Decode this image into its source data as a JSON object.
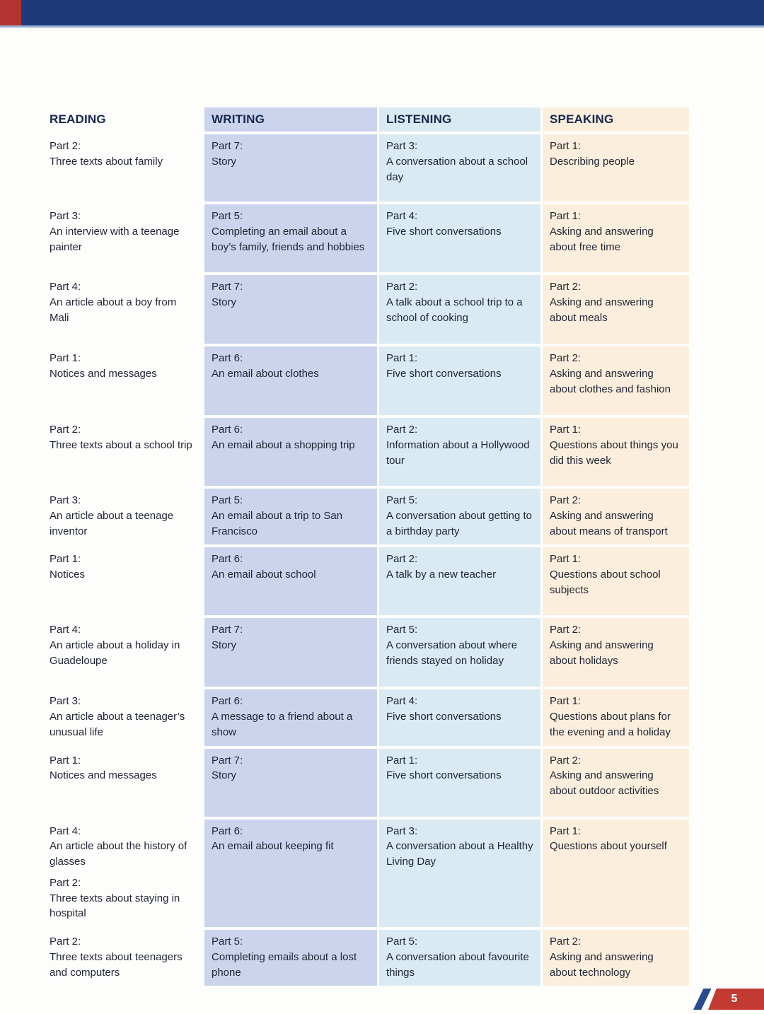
{
  "page": {
    "number": "5"
  },
  "colors": {
    "topbar_navy": "#203a79",
    "topbar_red": "#b23431",
    "writing_tint": "#cbd4ec",
    "listening_tint": "#d9eaf2",
    "speaking_tint": "#fbeedd",
    "badge_red": "#c23a32",
    "badge_blue": "#2b4a8b",
    "header_text": "#16284f"
  },
  "columns": [
    {
      "key": "reading",
      "title": "READING"
    },
    {
      "key": "writing",
      "title": "WRITING"
    },
    {
      "key": "listening",
      "title": "LISTENING"
    },
    {
      "key": "speaking",
      "title": "SPEAKING"
    }
  ],
  "rows": [
    {
      "reading": [
        {
          "part": "Part 2:",
          "desc": "Three texts about family"
        }
      ],
      "writing": [
        {
          "part": "Part 7:",
          "desc": "Story"
        }
      ],
      "listening": [
        {
          "part": "Part 3:",
          "desc": "A conversation about a school day"
        }
      ],
      "speaking": [
        {
          "part": "Part 1:",
          "desc": "Describing people"
        }
      ]
    },
    {
      "reading": [
        {
          "part": "Part 3:",
          "desc": "An interview with a teenage painter"
        }
      ],
      "writing": [
        {
          "part": "Part 5:",
          "desc": "Completing an email about a boy’s family, friends and hobbies"
        }
      ],
      "listening": [
        {
          "part": "Part 4:",
          "desc": "Five short conversations"
        }
      ],
      "speaking": [
        {
          "part": "Part 1:",
          "desc": "Asking and answering about free time"
        }
      ]
    },
    {
      "reading": [
        {
          "part": "Part 4:",
          "desc": "An article about a boy from Mali"
        }
      ],
      "writing": [
        {
          "part": "Part 7:",
          "desc": "Story"
        }
      ],
      "listening": [
        {
          "part": "Part 2:",
          "desc": "A talk about a school trip to a school of cooking"
        }
      ],
      "speaking": [
        {
          "part": "Part 2:",
          "desc": "Asking and answering about meals"
        }
      ]
    },
    {
      "reading": [
        {
          "part": "Part 1:",
          "desc": "Notices and messages"
        }
      ],
      "writing": [
        {
          "part": "Part 6:",
          "desc": "An email about clothes"
        }
      ],
      "listening": [
        {
          "part": "Part 1:",
          "desc": "Five short conversations"
        }
      ],
      "speaking": [
        {
          "part": "Part 2:",
          "desc": "Asking and answering about clothes and fashion"
        }
      ]
    },
    {
      "reading": [
        {
          "part": "Part 2:",
          "desc": "Three texts about a school trip"
        }
      ],
      "writing": [
        {
          "part": "Part 6:",
          "desc": "An email about a shopping trip"
        }
      ],
      "listening": [
        {
          "part": "Part 2:",
          "desc": "Information about a Hollywood tour"
        }
      ],
      "speaking": [
        {
          "part": "Part 1:",
          "desc": "Questions about things you did this week"
        }
      ]
    },
    {
      "reading": [
        {
          "part": "Part 3:",
          "desc": "An article about a teenage inventor"
        }
      ],
      "writing": [
        {
          "part": "Part 5:",
          "desc": "An email about a trip to San Francisco"
        }
      ],
      "listening": [
        {
          "part": "Part 5:",
          "desc": "A conversation about getting to a birthday party"
        }
      ],
      "speaking": [
        {
          "part": "Part 2:",
          "desc": "Asking and answering about means of transport"
        }
      ]
    },
    {
      "reading": [
        {
          "part": "Part 1:",
          "desc": "Notices"
        }
      ],
      "writing": [
        {
          "part": "Part 6:",
          "desc": "An email about school"
        }
      ],
      "listening": [
        {
          "part": "Part 2:",
          "desc": "A talk by a new teacher"
        }
      ],
      "speaking": [
        {
          "part": "Part 1:",
          "desc": "Questions about school subjects"
        }
      ]
    },
    {
      "reading": [
        {
          "part": "Part 4:",
          "desc": "An article about a holiday in Guadeloupe"
        }
      ],
      "writing": [
        {
          "part": "Part 7:",
          "desc": "Story"
        }
      ],
      "listening": [
        {
          "part": "Part 5:",
          "desc": "A conversation about where friends stayed on holiday"
        }
      ],
      "speaking": [
        {
          "part": "Part 2:",
          "desc": "Asking and answering about holidays"
        }
      ]
    },
    {
      "reading": [
        {
          "part": "Part 3:",
          "desc": "An article about a teenager’s unusual life"
        }
      ],
      "writing": [
        {
          "part": "Part 6:",
          "desc": "A message to a friend about a show"
        }
      ],
      "listening": [
        {
          "part": "Part 4:",
          "desc": "Five short conversations"
        }
      ],
      "speaking": [
        {
          "part": "Part 1:",
          "desc": "Questions about plans for the evening and a holiday"
        }
      ]
    },
    {
      "reading": [
        {
          "part": "Part 1:",
          "desc": "Notices and messages"
        }
      ],
      "writing": [
        {
          "part": "Part 7:",
          "desc": "Story"
        }
      ],
      "listening": [
        {
          "part": "Part 1:",
          "desc": "Five short conversations"
        }
      ],
      "speaking": [
        {
          "part": "Part 2:",
          "desc": "Asking and answering about outdoor activities"
        }
      ]
    },
    {
      "reading": [
        {
          "part": "Part 4:",
          "desc": "An article about the history of glasses"
        },
        {
          "part": "Part 2:",
          "desc": "Three texts about staying in hospital"
        }
      ],
      "writing": [
        {
          "part": "Part 6:",
          "desc": "An email about keeping fit"
        }
      ],
      "listening": [
        {
          "part": "Part 3:",
          "desc": "A conversation about a Healthy Living Day"
        }
      ],
      "speaking": [
        {
          "part": "Part 1:",
          "desc": "Questions about yourself"
        }
      ]
    },
    {
      "reading": [
        {
          "part": "Part 2:",
          "desc": "Three texts about teenagers and computers"
        }
      ],
      "writing": [
        {
          "part": "Part 5:",
          "desc": "Completing emails about a lost phone"
        }
      ],
      "listening": [
        {
          "part": "Part 5:",
          "desc": "A conversation about favourite things"
        }
      ],
      "speaking": [
        {
          "part": "Part 2:",
          "desc": "Asking and answering about technology"
        }
      ]
    }
  ]
}
